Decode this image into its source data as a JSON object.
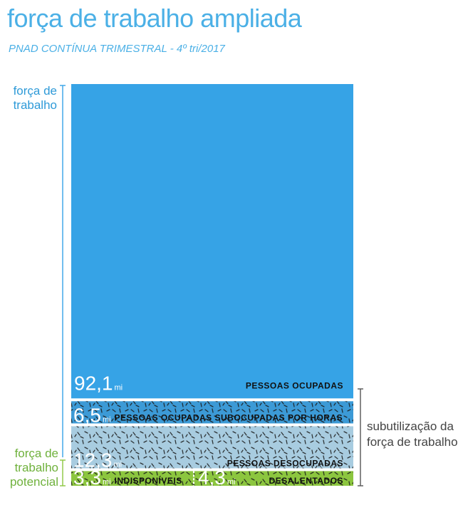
{
  "header": {
    "title": "força de trabalho ampliada",
    "subtitle": "PNAD CONTÍNUA TRIMESTRAL - 4º tri/2017"
  },
  "labels": {
    "forca_trabalho": "força de\ntrabalho",
    "forca_trabalho_potencial": "força de\ntrabalho\npotencial",
    "subutilizacao": "subutilização da\nforça de trabalho"
  },
  "colors": {
    "ocupadas": "#36a3e6",
    "subocupadas": "#3c9ad6",
    "desocupadas": "#a8cce0",
    "potencial": "#8cc63f",
    "blue_text": "#2e9ad8",
    "green_text": "#6fb13c"
  },
  "chart_data": {
    "type": "bar",
    "unit": "mi",
    "segments": [
      {
        "name": "PESSOAS OCUPADAS",
        "value": 92.1,
        "value_label": "92,1"
      },
      {
        "name": "PESSOAS OCUPADAS SUBOCUPADAS POR HORAS",
        "value": 6.5,
        "value_label": "6,5"
      },
      {
        "name": "PESSOAS DESOCUPADAS",
        "value": 12.3,
        "value_label": "12,3"
      },
      {
        "name": "INDISPONÍVEIS",
        "value": 3.3,
        "value_label": "3,3"
      },
      {
        "name": "DESALENTADOS",
        "value": 4.3,
        "value_label": "4,3"
      }
    ]
  }
}
